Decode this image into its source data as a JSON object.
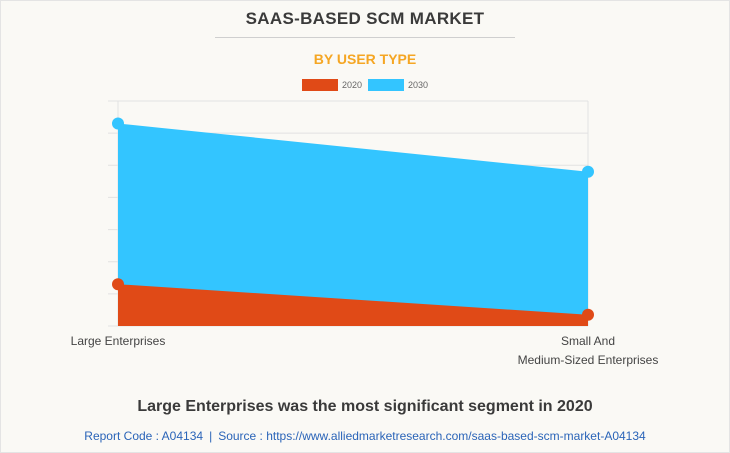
{
  "header": {
    "title": "SAAS-BASED SCM MARKET",
    "subtitle": "BY USER TYPE"
  },
  "legend": [
    {
      "label": "2020",
      "color": "#e04a17"
    },
    {
      "label": "2030",
      "color": "#33c5ff"
    }
  ],
  "footer": {
    "caption": "Large Enterprises was the most significant segment in 2020",
    "report_code": "Report Code : A04134",
    "separator": "|",
    "source": "Source : https://www.alliedmarketresearch.com/saas-based-scm-market-A04134"
  },
  "colors": {
    "title": "#3a3a3a",
    "subtitle": "#f5a623",
    "link": "#2a64b8",
    "grid": "#e2e2e2"
  },
  "chart_data": {
    "type": "area",
    "title": "SAAS-BASED SCM MARKET",
    "subtitle": "BY USER TYPE",
    "categories": [
      "Large Enterprises",
      "Small And\nMedium-Sized Enterprises"
    ],
    "category_lines": [
      [
        "Large Enterprises"
      ],
      [
        "Small And",
        "Medium-Sized Enterprises"
      ]
    ],
    "series": [
      {
        "name": "2030",
        "color": "#33c5ff",
        "values": [
          6.3,
          4.8
        ]
      },
      {
        "name": "2020",
        "color": "#e04a17",
        "values": [
          1.3,
          0.35
        ]
      }
    ],
    "xlabel": "",
    "ylabel": "",
    "ylim": [
      0,
      7
    ],
    "y_gridlines": 7,
    "y_tick_labels_shown": false,
    "grid": true,
    "legend_position": "top-center",
    "units": "relative (no axis values shown)"
  }
}
